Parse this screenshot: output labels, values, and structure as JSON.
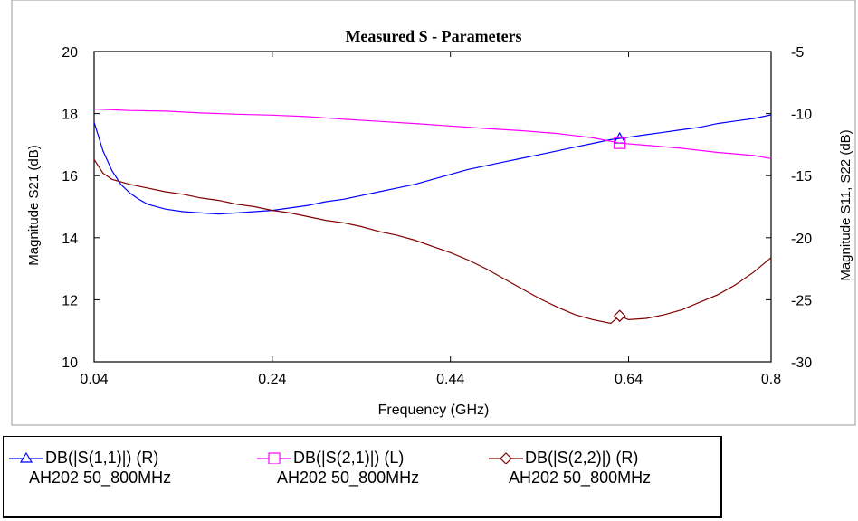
{
  "chart_data": {
    "type": "line",
    "title": "Measured S - Parameters",
    "xlabel": "Frequency (GHz)",
    "ylabel_left": "Magnitude S21 (dB)",
    "ylabel_right": "Magnitude S11, S22 (dB)",
    "xlim": [
      0.04,
      0.8
    ],
    "ylim_left": [
      10,
      20
    ],
    "ylim_right": [
      -30,
      -5
    ],
    "x_ticks": [
      "0.04",
      "0.24",
      "0.44",
      "0.64",
      "0.8"
    ],
    "x_tick_values": [
      0.04,
      0.24,
      0.44,
      0.64,
      0.8
    ],
    "y_left_ticks": [
      "10",
      "12",
      "14",
      "16",
      "18",
      "20"
    ],
    "y_left_tick_values": [
      10,
      12,
      14,
      16,
      18,
      20
    ],
    "y_right_ticks": [
      "-30",
      "-25",
      "-20",
      "-15",
      "-10",
      "-5"
    ],
    "y_right_tick_values": [
      -30,
      -25,
      -20,
      -15,
      -10,
      -5
    ],
    "grid": false,
    "legend_position": "bottom",
    "marker_x": 0.63,
    "series": [
      {
        "name": "DB(|S(1,1)|) (R)",
        "sub_label": "AH202 50_800MHz",
        "axis": "right",
        "color": "#0000ff",
        "marker": "triangle",
        "x": [
          0.04,
          0.05,
          0.06,
          0.07,
          0.08,
          0.09,
          0.1,
          0.12,
          0.14,
          0.16,
          0.18,
          0.2,
          0.22,
          0.24,
          0.26,
          0.28,
          0.3,
          0.32,
          0.34,
          0.36,
          0.38,
          0.4,
          0.42,
          0.44,
          0.46,
          0.48,
          0.5,
          0.52,
          0.54,
          0.56,
          0.58,
          0.6,
          0.62,
          0.63,
          0.64,
          0.66,
          0.68,
          0.7,
          0.72,
          0.74,
          0.76,
          0.78,
          0.8
        ],
        "y": [
          -10.7,
          -13.0,
          -14.6,
          -15.7,
          -16.4,
          -16.9,
          -17.3,
          -17.7,
          -17.9,
          -18.0,
          -18.1,
          -18.0,
          -17.9,
          -17.8,
          -17.6,
          -17.4,
          -17.1,
          -16.9,
          -16.6,
          -16.3,
          -16.0,
          -15.7,
          -15.3,
          -14.9,
          -14.5,
          -14.2,
          -13.9,
          -13.6,
          -13.3,
          -13.0,
          -12.7,
          -12.4,
          -12.1,
          -12.0,
          -11.9,
          -11.7,
          -11.5,
          -11.3,
          -11.1,
          -10.8,
          -10.6,
          -10.4,
          -10.1
        ]
      },
      {
        "name": "DB(|S(2,1)|) (L)",
        "sub_label": "AH202 50_800MHz",
        "axis": "left",
        "color": "#ff00ff",
        "marker": "square",
        "x": [
          0.04,
          0.08,
          0.12,
          0.16,
          0.2,
          0.24,
          0.28,
          0.32,
          0.36,
          0.4,
          0.44,
          0.48,
          0.52,
          0.56,
          0.6,
          0.63,
          0.66,
          0.7,
          0.74,
          0.78,
          0.8
        ],
        "y": [
          18.15,
          18.1,
          18.08,
          18.02,
          17.98,
          17.95,
          17.9,
          17.82,
          17.75,
          17.68,
          17.6,
          17.52,
          17.45,
          17.36,
          17.22,
          17.05,
          16.98,
          16.88,
          16.75,
          16.65,
          16.55
        ]
      },
      {
        "name": "DB(|S(2,2)|) (R)",
        "sub_label": "AH202 50_800MHz",
        "axis": "right",
        "color": "#800000",
        "marker": "diamond",
        "x": [
          0.04,
          0.05,
          0.06,
          0.08,
          0.1,
          0.12,
          0.14,
          0.16,
          0.18,
          0.2,
          0.22,
          0.24,
          0.26,
          0.28,
          0.3,
          0.32,
          0.34,
          0.36,
          0.38,
          0.4,
          0.42,
          0.44,
          0.46,
          0.48,
          0.5,
          0.52,
          0.54,
          0.56,
          0.58,
          0.6,
          0.62,
          0.63,
          0.64,
          0.66,
          0.68,
          0.7,
          0.72,
          0.74,
          0.76,
          0.78,
          0.8
        ],
        "y": [
          -13.7,
          -14.8,
          -15.3,
          -15.7,
          -16.0,
          -16.3,
          -16.5,
          -16.8,
          -17.0,
          -17.3,
          -17.5,
          -17.8,
          -18.0,
          -18.3,
          -18.6,
          -18.8,
          -19.1,
          -19.5,
          -19.8,
          -20.2,
          -20.7,
          -21.2,
          -21.8,
          -22.5,
          -23.3,
          -24.1,
          -24.9,
          -25.6,
          -26.2,
          -26.6,
          -26.9,
          -26.3,
          -26.6,
          -26.5,
          -26.2,
          -25.8,
          -25.2,
          -24.6,
          -23.8,
          -22.8,
          -21.6
        ]
      }
    ]
  }
}
